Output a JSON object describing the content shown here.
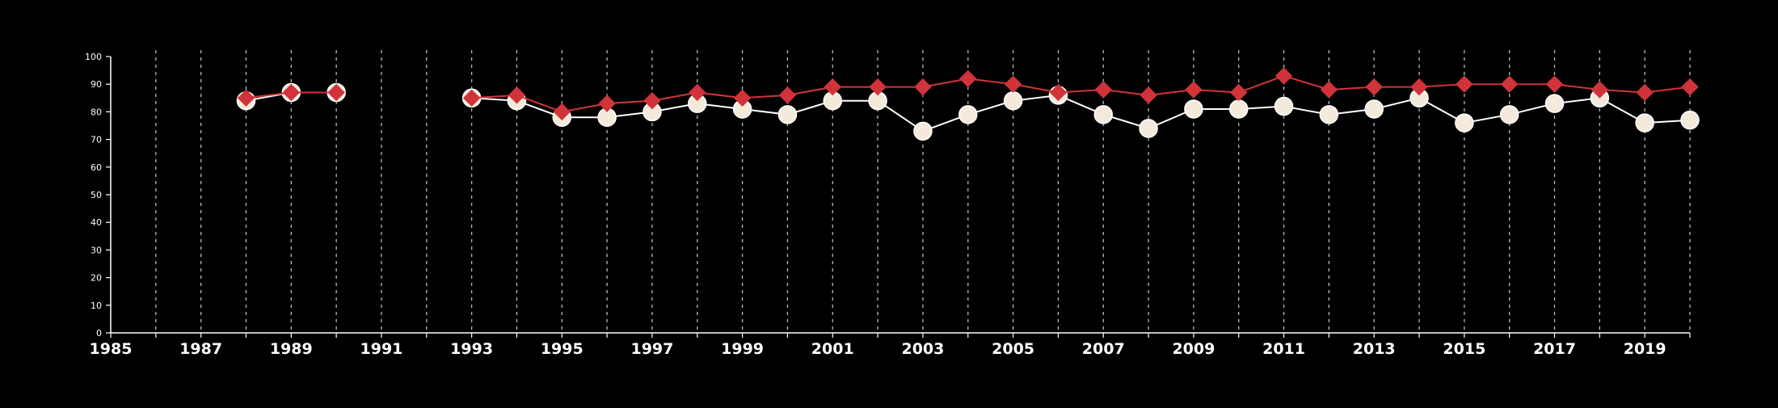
{
  "chart_data": {
    "type": "line",
    "x_range": [
      1985,
      2020
    ],
    "ylim": [
      0,
      100
    ],
    "x_tick_labels": [
      "1985",
      "1987",
      "1989",
      "1991",
      "1993",
      "1995",
      "1997",
      "1999",
      "2001",
      "2003",
      "2005",
      "2007",
      "2009",
      "2011",
      "2013",
      "2015",
      "2017",
      "2019"
    ],
    "y_tick_labels": [
      "0",
      "10",
      "20",
      "30",
      "40",
      "50",
      "60",
      "70",
      "80",
      "90",
      "100"
    ],
    "grid": "vertical dashed lines at every year",
    "legend": "none",
    "series": [
      {
        "marker": "circle",
        "color": "#f5e9dc",
        "line_color": "#ffffff",
        "points": [
          [
            1988,
            84
          ],
          [
            1989,
            87
          ],
          [
            1990,
            87
          ],
          [
            1993,
            85
          ],
          [
            1994,
            84
          ],
          [
            1995,
            78
          ],
          [
            1996,
            78
          ],
          [
            1997,
            80
          ],
          [
            1998,
            83
          ],
          [
            1999,
            81
          ],
          [
            2000,
            79
          ],
          [
            2001,
            84
          ],
          [
            2002,
            84
          ],
          [
            2003,
            73
          ],
          [
            2004,
            79
          ],
          [
            2005,
            84
          ],
          [
            2006,
            86
          ],
          [
            2007,
            79
          ],
          [
            2008,
            74
          ],
          [
            2009,
            81
          ],
          [
            2010,
            81
          ],
          [
            2011,
            82
          ],
          [
            2012,
            79
          ],
          [
            2013,
            81
          ],
          [
            2014,
            85
          ],
          [
            2015,
            76
          ],
          [
            2016,
            79
          ],
          [
            2017,
            83
          ],
          [
            2018,
            85
          ],
          [
            2019,
            76
          ],
          [
            2020,
            77
          ]
        ]
      },
      {
        "marker": "diamond",
        "color": "#d0343a",
        "line_color": "#d0343a",
        "points": [
          [
            1988,
            85
          ],
          [
            1989,
            87
          ],
          [
            1990,
            87
          ],
          [
            1993,
            85
          ],
          [
            1994,
            86
          ],
          [
            1995,
            80
          ],
          [
            1996,
            83
          ],
          [
            1997,
            84
          ],
          [
            1998,
            87
          ],
          [
            1999,
            85
          ],
          [
            2000,
            86
          ],
          [
            2001,
            89
          ],
          [
            2002,
            89
          ],
          [
            2003,
            89
          ],
          [
            2004,
            92
          ],
          [
            2005,
            90
          ],
          [
            2006,
            87
          ],
          [
            2007,
            88
          ],
          [
            2008,
            86
          ],
          [
            2009,
            88
          ],
          [
            2010,
            87
          ],
          [
            2011,
            93
          ],
          [
            2012,
            88
          ],
          [
            2013,
            89
          ],
          [
            2014,
            89
          ],
          [
            2015,
            90
          ],
          [
            2016,
            90
          ],
          [
            2017,
            90
          ],
          [
            2018,
            88
          ],
          [
            2019,
            87
          ],
          [
            2020,
            89
          ]
        ]
      }
    ]
  }
}
